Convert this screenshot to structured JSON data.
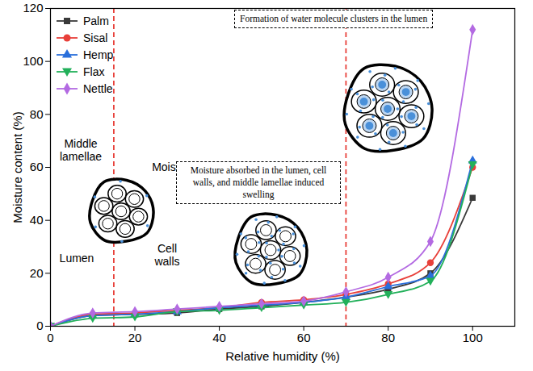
{
  "chart_data": {
    "type": "line",
    "x_label": "Relative humidity (%)",
    "y_label": "Moisture content (%)",
    "x": [
      0,
      10,
      20,
      30,
      40,
      50,
      60,
      70,
      80,
      90,
      100
    ],
    "series": [
      {
        "name": "Palm",
        "color": "#3a3a3a",
        "marker": "square",
        "values": [
          0,
          4,
          4.5,
          5,
          6.5,
          7.5,
          9,
          11,
          14,
          20,
          48.5
        ]
      },
      {
        "name": "Sisal",
        "color": "#e8403a",
        "marker": "circle",
        "values": [
          0,
          4.5,
          5,
          6,
          7,
          9,
          10,
          12,
          16,
          24,
          60
        ]
      },
      {
        "name": "Hemp",
        "color": "#2a6fdb",
        "marker": "triangle",
        "values": [
          0,
          4,
          4.5,
          5.5,
          7,
          8,
          9,
          11,
          15,
          19,
          62.5
        ]
      },
      {
        "name": "Flax",
        "color": "#22b05a",
        "marker": "triangle-down",
        "values": [
          0,
          3,
          3.5,
          5.5,
          6,
          7,
          8,
          9,
          12,
          17,
          61
        ]
      },
      {
        "name": "Nettle",
        "color": "#b36ae2",
        "marker": "diamond",
        "values": [
          0,
          5,
          5.5,
          6.5,
          7.5,
          8.5,
          9.5,
          13,
          18.5,
          32,
          112
        ]
      }
    ],
    "xlim": [
      0,
      110
    ],
    "xticks": [
      0,
      20,
      40,
      60,
      80,
      100
    ],
    "ylim": [
      0,
      120
    ],
    "yticks": [
      0,
      20,
      40,
      60,
      80,
      100,
      120
    ],
    "legend": "top-left",
    "reference_lines": [
      {
        "x": 15,
        "color": "#e8403a",
        "line_style": "dashed"
      },
      {
        "x": 70,
        "color": "#e8403a",
        "line_style": "dashed"
      }
    ],
    "annotations": [
      "Middle lamellae",
      "Moisture",
      "Lumen",
      "Cell walls",
      "Moisture absorbed in the lumen, cell walls, and middle lamellae induced swelling",
      "Formation of water molecule clusters in the lumen"
    ]
  }
}
